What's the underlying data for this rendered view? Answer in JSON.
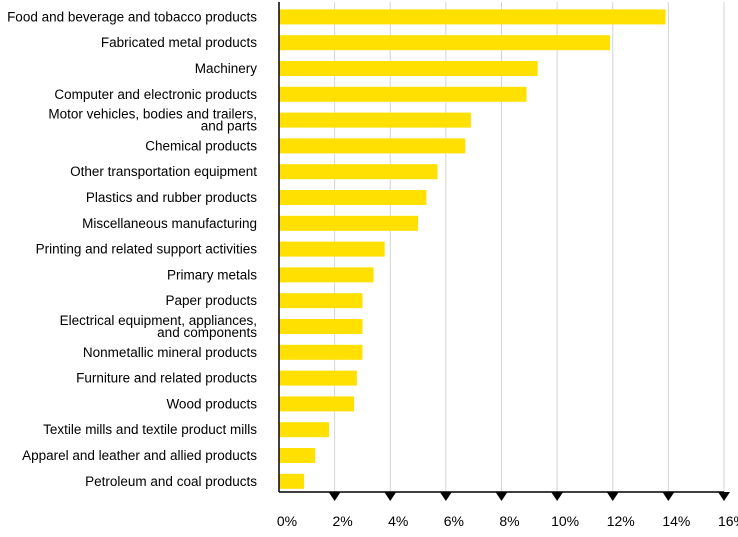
{
  "chart_data": {
    "type": "bar",
    "orientation": "horizontal",
    "categories": [
      [
        "Food and beverage and tobacco products"
      ],
      [
        "Fabricated metal products"
      ],
      [
        "Machinery"
      ],
      [
        "Computer and electronic products"
      ],
      [
        "Motor vehicles, bodies and trailers,",
        "and parts"
      ],
      [
        "Chemical products"
      ],
      [
        "Other transportation equipment"
      ],
      [
        "Plastics and rubber products"
      ],
      [
        "Miscellaneous manufacturing"
      ],
      [
        "Printing and related support activities"
      ],
      [
        "Primary metals"
      ],
      [
        "Paper products"
      ],
      [
        "Electrical equipment, appliances,",
        "and components"
      ],
      [
        "Nonmetallic mineral products"
      ],
      [
        "Furniture and related products"
      ],
      [
        "Wood products"
      ],
      [
        "Textile mills and textile product mills"
      ],
      [
        "Apparel and leather and allied products"
      ],
      [
        "Petroleum and coal products"
      ]
    ],
    "values": [
      13.9,
      11.9,
      9.3,
      8.9,
      6.9,
      6.7,
      5.7,
      5.3,
      5.0,
      3.8,
      3.4,
      3.0,
      3.0,
      3.0,
      2.8,
      2.7,
      1.8,
      1.3,
      0.9
    ],
    "xlim": [
      0,
      16
    ],
    "xticks": [
      0,
      2,
      4,
      6,
      8,
      10,
      12,
      14,
      16
    ],
    "tick_labels": [
      "0%",
      "2%",
      "4%",
      "6%",
      "8%",
      "10%",
      "12%",
      "14%",
      "16%"
    ],
    "grid": true,
    "bar_color": "#FFE000",
    "title": "",
    "xlabel": "",
    "ylabel": ""
  }
}
